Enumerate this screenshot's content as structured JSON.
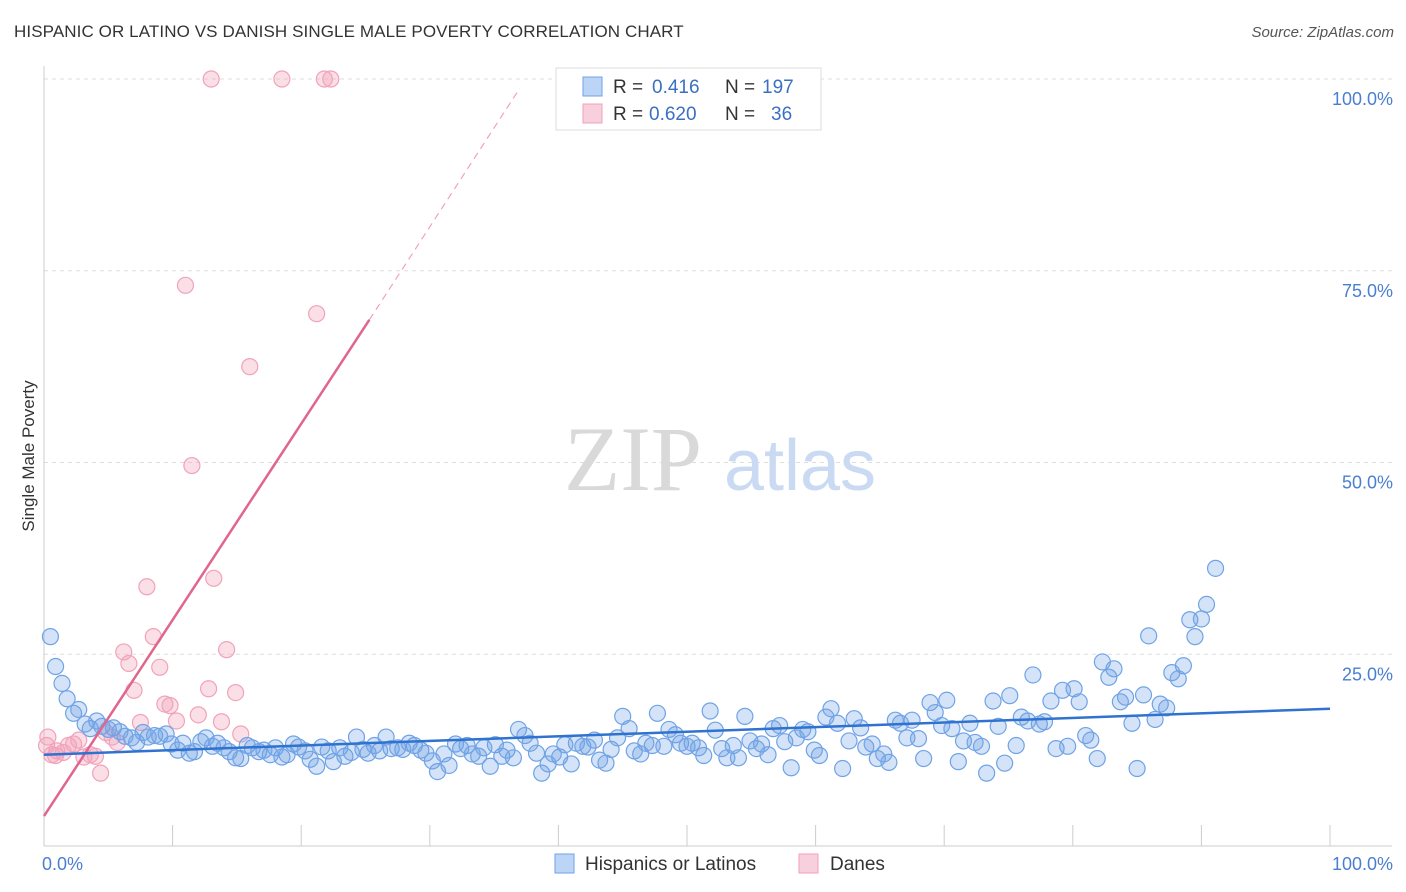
{
  "title": "HISPANIC OR LATINO VS DANISH SINGLE MALE POVERTY CORRELATION CHART",
  "source": "Source: ZipAtlas.com",
  "watermark": {
    "zip": "ZIP",
    "atlas": "atlas"
  },
  "colors": {
    "blue": "#6fa3e6",
    "blue_line": "#2f72cf",
    "pink": "#f2a2ba",
    "pink_line": "#e0668e",
    "grid": "#dddddd",
    "tick_text": "#4a7fd0"
  },
  "legend_top": [
    {
      "r_label": "R =",
      "r_value": "0.416",
      "n_label": "N =",
      "n_value": "197"
    },
    {
      "r_label": "R =",
      "r_value": "0.620",
      "n_label": "N =",
      "n_value": "36"
    }
  ],
  "chart_data": {
    "type": "scatter",
    "xlabel": "",
    "ylabel": "Single Male Poverty",
    "xlim": [
      0,
      100
    ],
    "ylim": [
      0,
      100
    ],
    "x_tick_labels": [
      "0.0%",
      "100.0%"
    ],
    "y_tick_labels": [
      "100.0%",
      "75.0%",
      "50.0%",
      "25.0%"
    ],
    "y_ticks": [
      100,
      75,
      50,
      25
    ],
    "grid": true,
    "legend_position": "bottom",
    "series": [
      {
        "name": "Hispanics or Latinos",
        "color": "#6fa3e6",
        "trend": {
          "x": [
            0,
            100
          ],
          "y": [
            11.9,
            17.9
          ]
        },
        "points": [
          [
            0.5,
            27.3
          ],
          [
            0.9,
            23.4
          ],
          [
            1.4,
            21.2
          ],
          [
            1.8,
            19.2
          ],
          [
            2.3,
            17.3
          ],
          [
            2.7,
            17.8
          ],
          [
            3.2,
            15.9
          ],
          [
            3.6,
            15.3
          ],
          [
            4.1,
            16.3
          ],
          [
            4.5,
            15.6
          ],
          [
            5.0,
            15.2
          ],
          [
            5.4,
            15.4
          ],
          [
            5.9,
            14.9
          ],
          [
            6.3,
            14.3
          ],
          [
            6.8,
            14.1
          ],
          [
            7.2,
            13.5
          ],
          [
            7.7,
            14.8
          ],
          [
            8.1,
            14.2
          ],
          [
            8.6,
            14.4
          ],
          [
            9.0,
            14.3
          ],
          [
            9.5,
            14.6
          ],
          [
            9.9,
            13.3
          ],
          [
            10.4,
            12.5
          ],
          [
            10.8,
            13.4
          ],
          [
            11.3,
            12.1
          ],
          [
            11.7,
            12.3
          ],
          [
            12.2,
            13.6
          ],
          [
            12.6,
            14.1
          ],
          [
            13.1,
            13.0
          ],
          [
            13.5,
            13.4
          ],
          [
            14.0,
            12.8
          ],
          [
            14.4,
            12.3
          ],
          [
            14.9,
            11.5
          ],
          [
            15.3,
            11.4
          ],
          [
            15.8,
            13.1
          ],
          [
            16.2,
            12.8
          ],
          [
            16.7,
            12.3
          ],
          [
            17.1,
            12.5
          ],
          [
            17.6,
            11.9
          ],
          [
            18.0,
            12.8
          ],
          [
            18.5,
            11.6
          ],
          [
            18.9,
            11.9
          ],
          [
            19.4,
            13.3
          ],
          [
            19.8,
            12.9
          ],
          [
            20.3,
            12.4
          ],
          [
            20.7,
            11.3
          ],
          [
            21.2,
            10.4
          ],
          [
            21.6,
            12.9
          ],
          [
            22.1,
            12.4
          ],
          [
            22.5,
            11.0
          ],
          [
            23.0,
            12.8
          ],
          [
            23.4,
            11.7
          ],
          [
            23.9,
            12.2
          ],
          [
            24.3,
            14.2
          ],
          [
            24.8,
            12.6
          ],
          [
            25.2,
            12.1
          ],
          [
            25.7,
            13.1
          ],
          [
            26.1,
            12.4
          ],
          [
            26.6,
            14.2
          ],
          [
            27.0,
            12.7
          ],
          [
            27.5,
            12.8
          ],
          [
            27.9,
            12.6
          ],
          [
            28.4,
            13.4
          ],
          [
            28.8,
            13.1
          ],
          [
            29.3,
            12.5
          ],
          [
            29.7,
            12.1
          ],
          [
            30.2,
            11.1
          ],
          [
            30.6,
            9.7
          ],
          [
            31.1,
            12.0
          ],
          [
            31.5,
            10.5
          ],
          [
            32.0,
            13.3
          ],
          [
            32.4,
            12.7
          ],
          [
            32.9,
            13.1
          ],
          [
            33.3,
            12.0
          ],
          [
            33.8,
            11.7
          ],
          [
            34.2,
            12.8
          ],
          [
            34.7,
            10.4
          ],
          [
            35.1,
            13.2
          ],
          [
            35.6,
            11.7
          ],
          [
            36.0,
            12.5
          ],
          [
            36.5,
            11.5
          ],
          [
            36.9,
            15.2
          ],
          [
            37.4,
            14.4
          ],
          [
            37.8,
            13.4
          ],
          [
            38.3,
            12.1
          ],
          [
            38.7,
            9.5
          ],
          [
            39.2,
            10.7
          ],
          [
            39.6,
            12.0
          ],
          [
            40.1,
            11.6
          ],
          [
            40.5,
            13.2
          ],
          [
            41.0,
            10.7
          ],
          [
            41.4,
            13.4
          ],
          [
            41.9,
            13.0
          ],
          [
            42.3,
            12.9
          ],
          [
            42.8,
            13.8
          ],
          [
            43.2,
            11.2
          ],
          [
            43.7,
            10.8
          ],
          [
            44.1,
            12.6
          ],
          [
            44.6,
            14.1
          ],
          [
            45.0,
            16.9
          ],
          [
            45.5,
            15.3
          ],
          [
            45.9,
            12.4
          ],
          [
            46.4,
            12.0
          ],
          [
            46.8,
            13.4
          ],
          [
            47.3,
            13.1
          ],
          [
            47.7,
            17.3
          ],
          [
            48.2,
            13.0
          ],
          [
            48.6,
            15.2
          ],
          [
            49.1,
            14.5
          ],
          [
            49.5,
            13.4
          ],
          [
            50.0,
            13.0
          ],
          [
            50.4,
            13.4
          ],
          [
            50.9,
            12.8
          ],
          [
            51.3,
            11.8
          ],
          [
            51.8,
            17.6
          ],
          [
            52.2,
            15.1
          ],
          [
            52.7,
            12.7
          ],
          [
            53.1,
            11.5
          ],
          [
            53.6,
            13.1
          ],
          [
            54.0,
            11.5
          ],
          [
            54.5,
            16.9
          ],
          [
            54.9,
            13.7
          ],
          [
            55.4,
            12.7
          ],
          [
            55.8,
            13.3
          ],
          [
            56.3,
            11.9
          ],
          [
            56.7,
            15.3
          ],
          [
            57.2,
            15.7
          ],
          [
            57.6,
            13.6
          ],
          [
            58.1,
            10.2
          ],
          [
            58.5,
            14.1
          ],
          [
            59.0,
            15.2
          ],
          [
            59.4,
            14.9
          ],
          [
            59.9,
            12.5
          ],
          [
            60.3,
            11.8
          ],
          [
            60.8,
            16.8
          ],
          [
            61.2,
            17.9
          ],
          [
            61.7,
            16.0
          ],
          [
            62.1,
            10.1
          ],
          [
            62.6,
            13.7
          ],
          [
            63.0,
            16.6
          ],
          [
            63.5,
            15.4
          ],
          [
            63.9,
            12.9
          ],
          [
            64.4,
            13.3
          ],
          [
            64.8,
            11.4
          ],
          [
            65.3,
            12.0
          ],
          [
            65.7,
            10.9
          ],
          [
            66.2,
            16.4
          ],
          [
            66.6,
            16.0
          ],
          [
            67.1,
            14.1
          ],
          [
            67.5,
            16.4
          ],
          [
            68.0,
            14.0
          ],
          [
            68.4,
            11.4
          ],
          [
            68.9,
            18.7
          ],
          [
            69.3,
            17.4
          ],
          [
            69.8,
            15.7
          ],
          [
            70.2,
            19.0
          ],
          [
            70.6,
            15.3
          ],
          [
            71.1,
            11.0
          ],
          [
            71.5,
            13.7
          ],
          [
            72.0,
            16.0
          ],
          [
            72.4,
            13.5
          ],
          [
            72.9,
            13.0
          ],
          [
            73.3,
            9.5
          ],
          [
            73.8,
            18.9
          ],
          [
            74.2,
            15.6
          ],
          [
            74.7,
            10.8
          ],
          [
            75.1,
            19.6
          ],
          [
            75.6,
            13.1
          ],
          [
            76.0,
            16.8
          ],
          [
            76.5,
            16.3
          ],
          [
            76.9,
            22.3
          ],
          [
            77.4,
            15.9
          ],
          [
            77.8,
            16.2
          ],
          [
            78.3,
            18.9
          ],
          [
            78.7,
            12.7
          ],
          [
            79.2,
            20.3
          ],
          [
            79.6,
            13.0
          ],
          [
            80.1,
            20.5
          ],
          [
            80.5,
            18.8
          ],
          [
            81.0,
            14.4
          ],
          [
            81.4,
            13.8
          ],
          [
            81.9,
            11.4
          ],
          [
            82.3,
            24.0
          ],
          [
            82.8,
            22.0
          ],
          [
            83.2,
            23.1
          ],
          [
            83.7,
            18.8
          ],
          [
            84.1,
            19.4
          ],
          [
            84.6,
            16.0
          ],
          [
            85.0,
            10.1
          ],
          [
            85.5,
            19.7
          ],
          [
            85.9,
            27.4
          ],
          [
            86.4,
            16.5
          ],
          [
            86.8,
            18.5
          ],
          [
            87.3,
            18.0
          ],
          [
            87.7,
            22.6
          ],
          [
            88.2,
            21.8
          ],
          [
            88.6,
            23.5
          ],
          [
            89.1,
            29.5
          ],
          [
            89.5,
            27.3
          ],
          [
            90.0,
            29.6
          ],
          [
            90.4,
            31.5
          ],
          [
            91.1,
            36.2
          ]
        ]
      },
      {
        "name": "Danes",
        "color": "#f2a2ba",
        "trend": {
          "x": [
            0,
            25.3
          ],
          "y": [
            3.9,
            68.6
          ]
        },
        "trend_ext": {
          "x": [
            25.3,
            37
          ],
          "y": [
            68.6,
            98.8
          ]
        },
        "points": [
          [
            0.2,
            13.1
          ],
          [
            0.6,
            11.9
          ],
          [
            1.0,
            12.4
          ],
          [
            1.5,
            12.2
          ],
          [
            1.9,
            13.1
          ],
          [
            2.3,
            13.3
          ],
          [
            2.7,
            13.8
          ],
          [
            3.1,
            11.6
          ],
          [
            3.6,
            11.9
          ],
          [
            4.0,
            11.7
          ],
          [
            4.4,
            9.5
          ],
          [
            4.8,
            14.8
          ],
          [
            5.3,
            14.2
          ],
          [
            5.7,
            13.5
          ],
          [
            6.2,
            25.3
          ],
          [
            6.6,
            23.8
          ],
          [
            7.0,
            20.3
          ],
          [
            7.5,
            16.1
          ],
          [
            8.0,
            33.8
          ],
          [
            8.5,
            27.3
          ],
          [
            9.0,
            23.3
          ],
          [
            9.4,
            18.5
          ],
          [
            9.8,
            18.3
          ],
          [
            10.3,
            16.3
          ],
          [
            11.0,
            73.1
          ],
          [
            11.5,
            49.6
          ],
          [
            12.0,
            17.1
          ],
          [
            12.8,
            20.5
          ],
          [
            13.2,
            34.9
          ],
          [
            13.8,
            16.2
          ],
          [
            14.2,
            25.6
          ],
          [
            14.9,
            20.0
          ],
          [
            15.3,
            14.6
          ],
          [
            18.5,
            100
          ],
          [
            21.2,
            69.4
          ],
          [
            22.3,
            100
          ],
          [
            16.0,
            62.5
          ],
          [
            13.0,
            100
          ],
          [
            21.8,
            100
          ],
          [
            0.9,
            11.8
          ],
          [
            0.3,
            14.2
          ]
        ]
      }
    ]
  },
  "legend_bottom": [
    {
      "label": "Hispanics or Latinos",
      "color": "#6fa3e6"
    },
    {
      "label": "Danes",
      "color": "#f2a2ba"
    }
  ]
}
